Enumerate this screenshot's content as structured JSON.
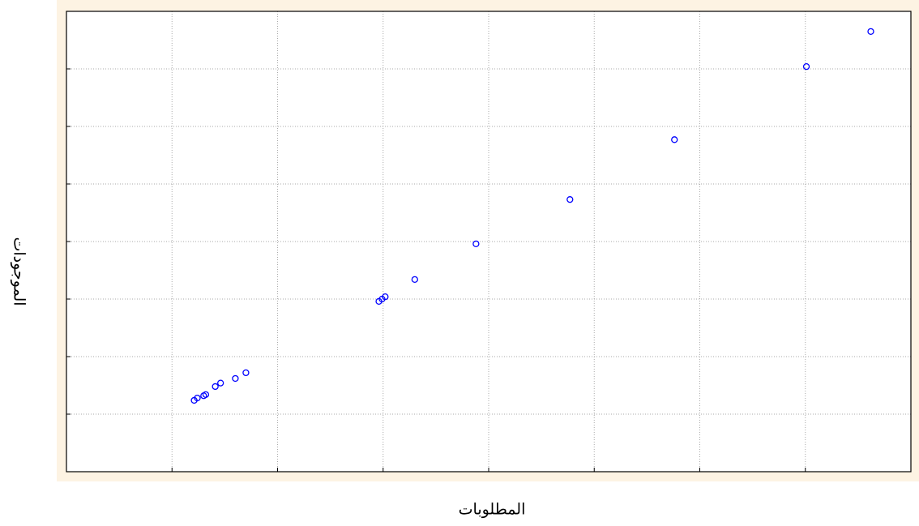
{
  "chart_data": {
    "type": "scatter",
    "x_label": "المطلوبات",
    "y_label": "الموجودات",
    "xlim": [
      0,
      8
    ],
    "ylim": [
      0,
      8
    ],
    "xticks": [
      1,
      2,
      3,
      4,
      5,
      6,
      7
    ],
    "yticks": [
      1,
      2,
      3,
      4,
      5,
      6,
      7
    ],
    "grid": true,
    "series": [
      {
        "color": "#0000ff",
        "x": [
          1.21,
          1.24,
          1.3,
          1.32,
          1.41,
          1.46,
          1.6,
          1.7,
          2.96,
          2.99,
          3.02,
          3.3,
          3.88,
          4.77,
          5.76,
          7.01,
          7.62
        ],
        "values": [
          1.24,
          1.28,
          1.32,
          1.34,
          1.48,
          1.54,
          1.62,
          1.72,
          2.96,
          3.0,
          3.04,
          3.34,
          3.96,
          4.73,
          5.77,
          7.04,
          7.65
        ]
      }
    ]
  }
}
